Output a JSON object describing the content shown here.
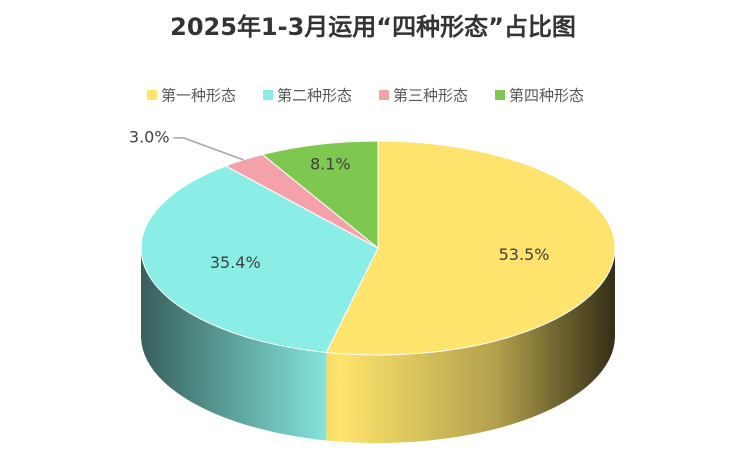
{
  "chart_data": {
    "type": "pie3d",
    "title": "2025年1-3月运用“四种形态”占比图",
    "categories": [
      "第一种形态",
      "第二种形态",
      "第三种形态",
      "第四种形态"
    ],
    "values": [
      53.5,
      35.4,
      3.0,
      8.1
    ],
    "value_labels": [
      "53.5%",
      "35.4%",
      "3.0%",
      "8.1%"
    ],
    "colors": [
      "#fee46c",
      "#8aeee6",
      "#f5a1aa",
      "#7fc84f"
    ],
    "legend": "top"
  }
}
